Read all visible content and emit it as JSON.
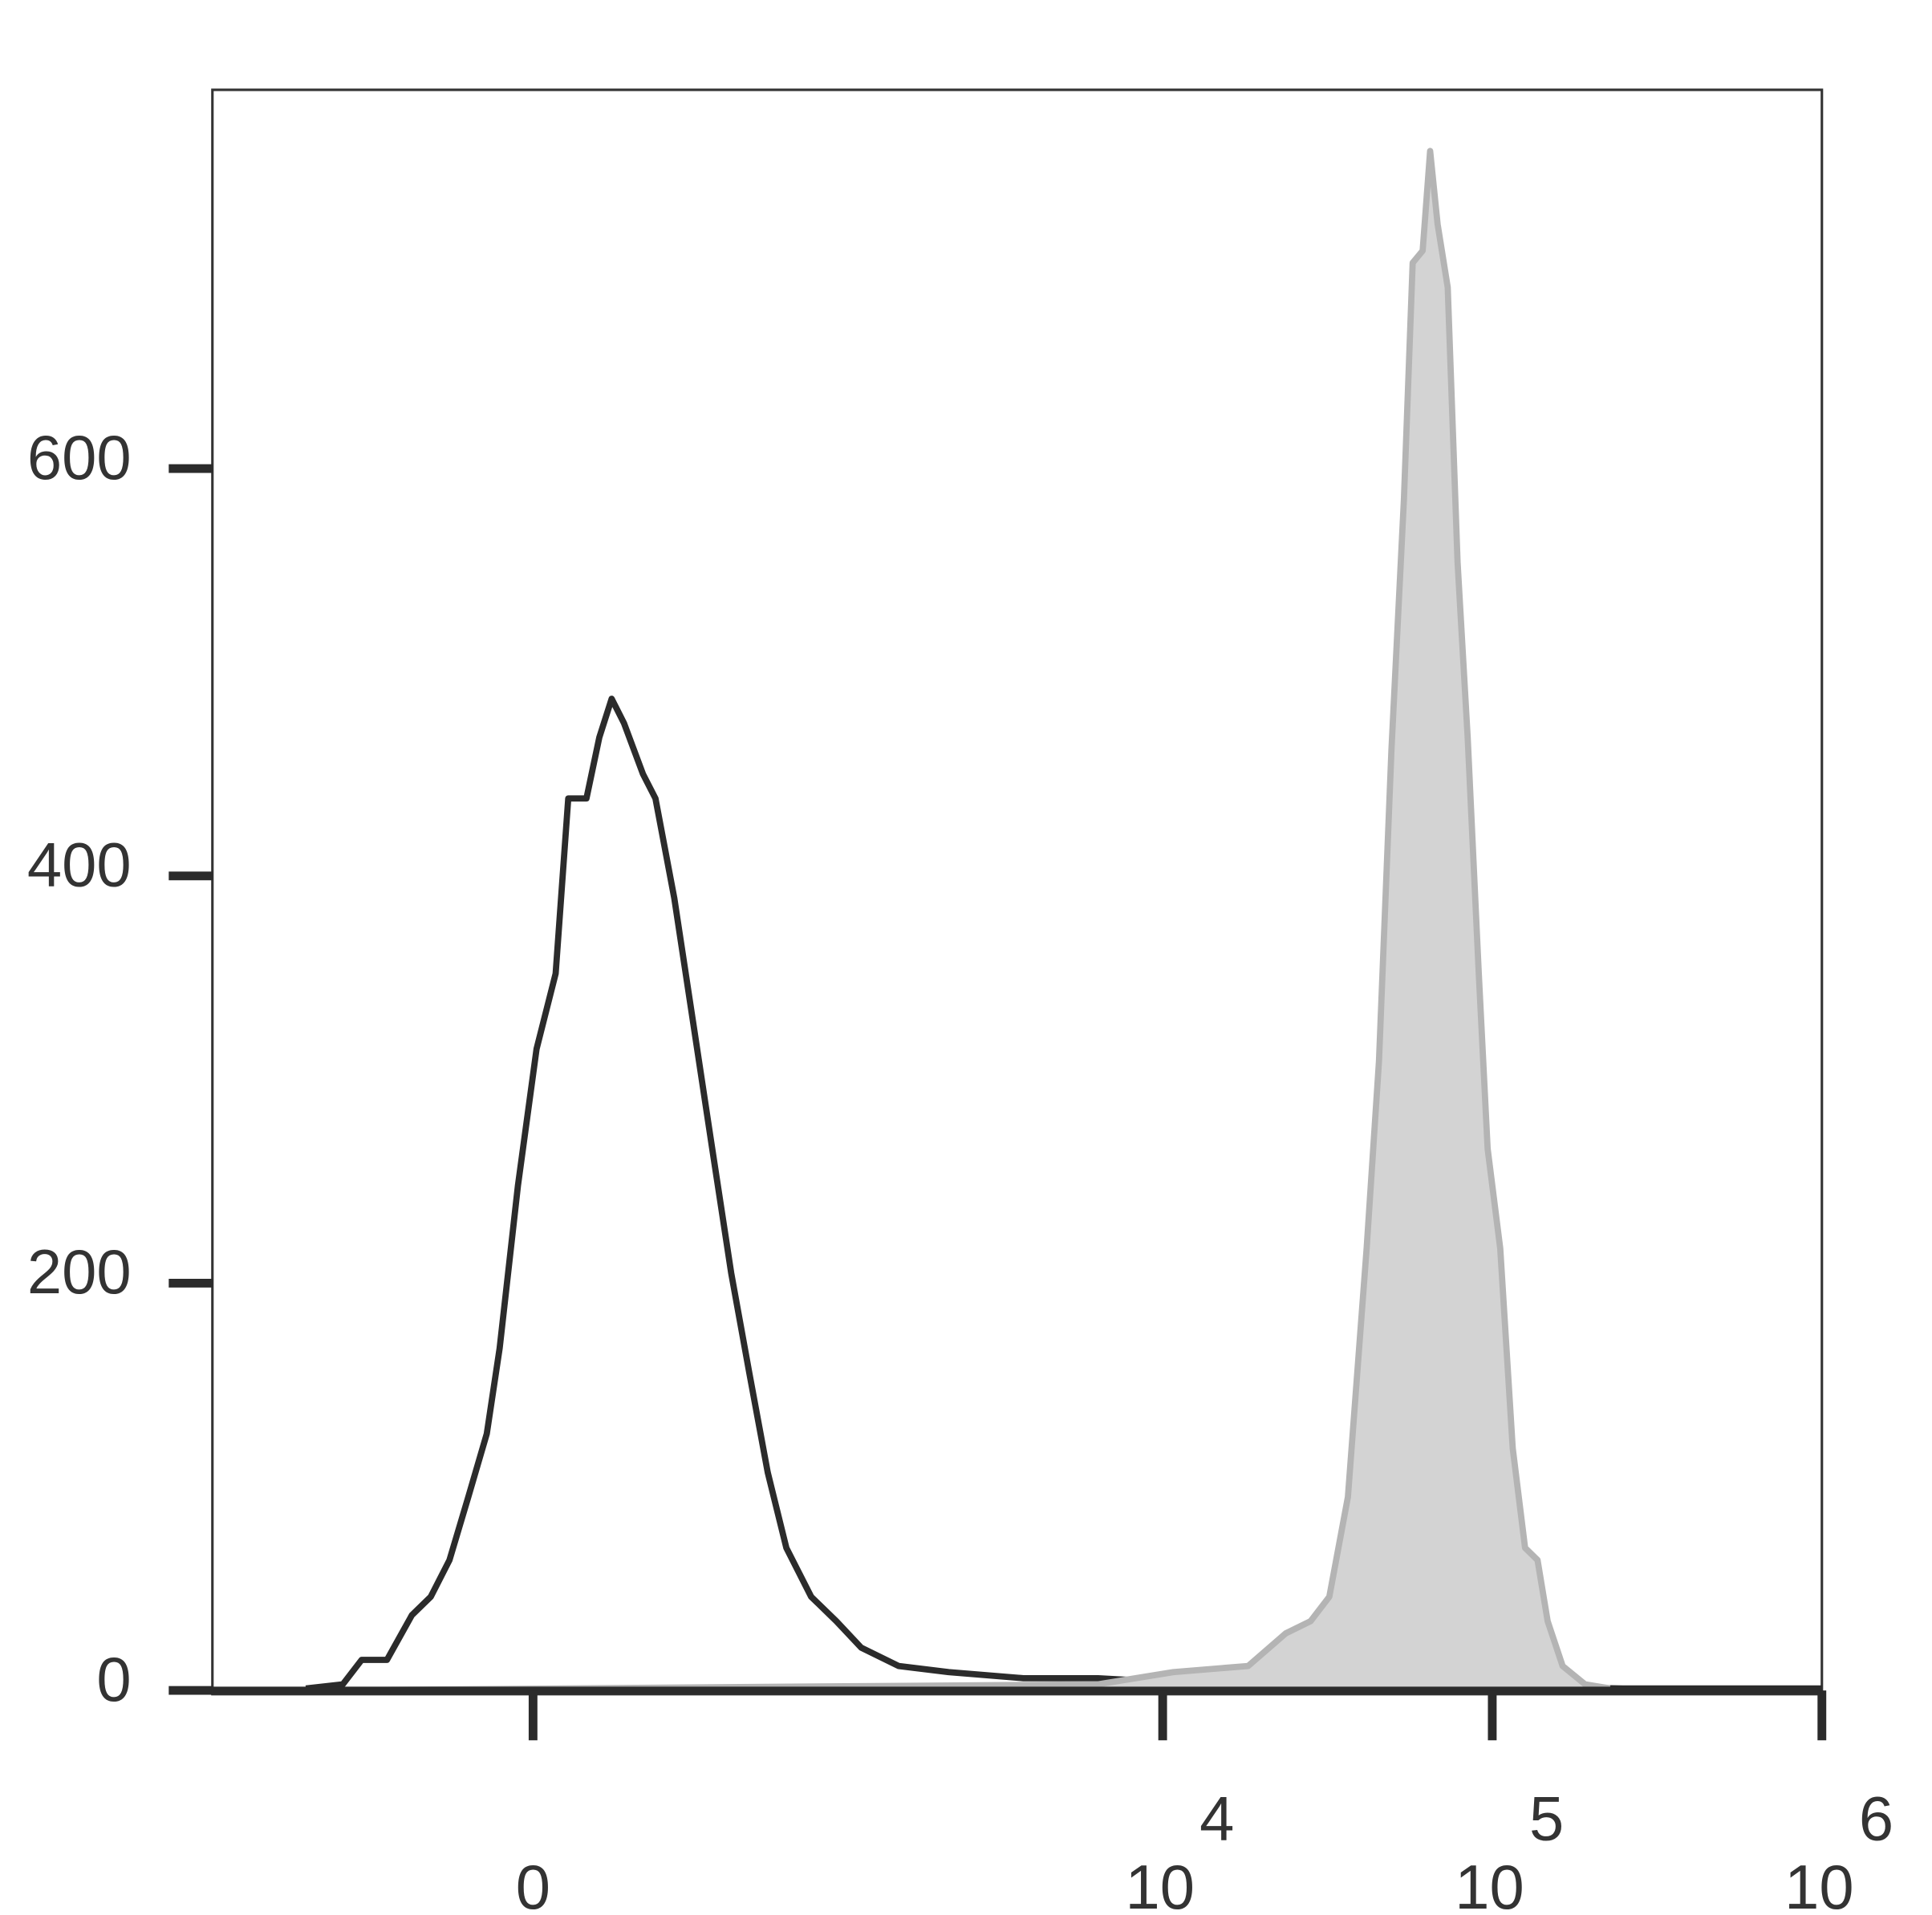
{
  "chart_data": {
    "type": "histogram-overlay",
    "xscale": "biexponential",
    "xlim": [
      -1142,
      1000000
    ],
    "ylim": [
      0,
      786
    ],
    "xticks": [
      0,
      {
        "value": 10000,
        "label": "10",
        "exponent": "4"
      },
      {
        "value": 100000,
        "label": "10",
        "exponent": "5"
      },
      {
        "value": 1000000,
        "label": "10",
        "exponent": "6"
      }
    ],
    "yticks": [
      0,
      200,
      400,
      600
    ],
    "series": [
      {
        "color": "#2b2b2b",
        "fill": false,
        "x": [
          -576,
          -432,
          -370,
          -297,
          -234,
          -191,
          -152,
          -115,
          -81,
          -58,
          -26,
          6,
          39,
          61,
          94,
          118,
          142,
          167,
          208,
          237,
          284,
          336,
          395,
          460,
          530,
          610,
          701,
          841,
          1009,
          1205,
          1572,
          2236,
          3781,
          6371,
          10775,
          18179,
          28118,
          43444,
          104058,
          248952,
          1000000
        ],
        "values": [
          1,
          3,
          15,
          15,
          37,
          46,
          64,
          95,
          126,
          168,
          248,
          315,
          352,
          438,
          438,
          468,
          487,
          475,
          450,
          438,
          389,
          328,
          266,
          205,
          156,
          107,
          70,
          46,
          34,
          21,
          12,
          9,
          6,
          6,
          4,
          4,
          6,
          3,
          2,
          1,
          1
        ]
      },
      {
        "color": "#b4b4b4",
        "fill": true,
        "fill_color": "#d3d3d3",
        "x": [
          -576,
          6371,
          10775,
          18179,
          23616,
          28118,
          32029,
          36482,
          41574,
          45338,
          49446,
          53948,
          57343,
          61500,
          64772,
          68290,
          73259,
          78499,
          84181,
          91020,
          96826,
          105706,
          115325,
          125804,
          137243,
          147206,
          163516,
          191314,
          227550
        ],
        "values": [
          0,
          3,
          9,
          12,
          28,
          34,
          46,
          95,
          217,
          309,
          462,
          585,
          701,
          707,
          756,
          720,
          689,
          554,
          468,
          352,
          266,
          217,
          119,
          70,
          64,
          34,
          12,
          3,
          1
        ]
      }
    ]
  }
}
